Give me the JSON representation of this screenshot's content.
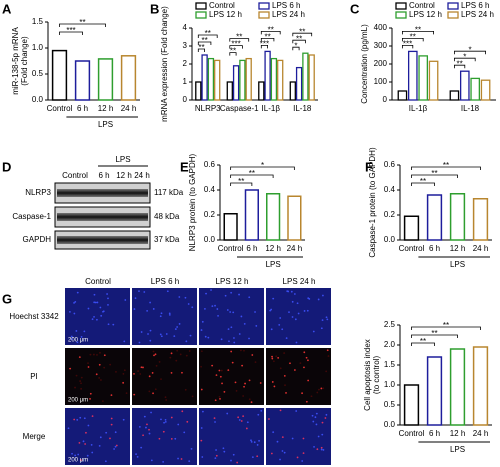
{
  "chart_data": [
    {
      "label": "A",
      "type": "bar",
      "categories": [
        "Control",
        "6 h",
        "12 h",
        "24 h"
      ],
      "values": [
        0.95,
        0.75,
        0.79,
        0.85
      ],
      "colors": [
        "#000000",
        "#1d1d9c",
        "#2e9e2e",
        "#b8862e"
      ],
      "ylabel": [
        "miR-138-5p mRNA",
        "(Fold change)"
      ],
      "ylim": [
        0,
        1.5
      ],
      "yticks": [
        {
          "value": 0,
          "label": "0.0"
        },
        0.5,
        {
          "value": 1,
          "label": "1.0"
        },
        1.5
      ],
      "group_label": "LPS",
      "annotations": [
        "***",
        "**"
      ]
    },
    {
      "label": "B",
      "type": "grouped_bar",
      "categories": [
        "NLRP3",
        "Caspase-1",
        "IL-1β",
        "IL-18"
      ],
      "series": [
        {
          "name": "Control",
          "color": "#000000",
          "values": [
            1.0,
            1.0,
            1.0,
            1.0
          ]
        },
        {
          "name": "LPS 6 h",
          "color": "#1d1d9c",
          "values": [
            2.5,
            1.9,
            2.7,
            1.8
          ]
        },
        {
          "name": "LPS 12 h",
          "color": "#2e9e2e",
          "values": [
            2.3,
            2.2,
            2.3,
            2.6
          ]
        },
        {
          "name": "LPS 24 h",
          "color": "#b8862e",
          "values": [
            2.2,
            2.3,
            2.2,
            2.5
          ]
        }
      ],
      "ylabel": [
        "mRNA expression (Fold change)"
      ],
      "ylim": [
        0,
        4
      ],
      "yticks": [
        0,
        1,
        2,
        3,
        4
      ],
      "legend": "top",
      "annotations": [
        [
          "**",
          "**",
          "**"
        ],
        [
          "**",
          "***",
          "**"
        ],
        [
          "***",
          "**",
          "**"
        ],
        [
          "*",
          "**",
          "**"
        ]
      ]
    },
    {
      "label": "C",
      "type": "grouped_bar",
      "categories": [
        "IL-1β",
        "IL-18"
      ],
      "series": [
        {
          "name": "Control",
          "color": "#000000",
          "values": [
            50,
            50
          ]
        },
        {
          "name": "LPS 6 h",
          "color": "#1d1d9c",
          "values": [
            270,
            160
          ]
        },
        {
          "name": "LPS 12 h",
          "color": "#2e9e2e",
          "values": [
            245,
            120
          ]
        },
        {
          "name": "LPS 24 h",
          "color": "#b8862e",
          "values": [
            215,
            110
          ]
        }
      ],
      "ylabel": [
        "Concentration (pg/mL)"
      ],
      "ylim": [
        0,
        400
      ],
      "yticks": [
        0,
        100,
        200,
        300,
        400
      ],
      "legend": "top",
      "annotations": [
        [
          "***",
          "**",
          "**"
        ],
        [
          "**",
          "*",
          "*"
        ]
      ]
    },
    {
      "label": "E",
      "type": "bar",
      "categories": [
        "Control",
        "6 h",
        "12 h",
        "24 h"
      ],
      "values": [
        0.21,
        0.4,
        0.37,
        0.35
      ],
      "colors": [
        "#000000",
        "#1d1d9c",
        "#2e9e2e",
        "#b8862e"
      ],
      "ylabel": [
        "NLRP3 protein (to GAPDH)"
      ],
      "ylim": [
        0,
        0.6
      ],
      "yticks": [
        {
          "value": 0,
          "label": "0.0"
        },
        0.2,
        0.4,
        0.6
      ],
      "group_label": "LPS",
      "annotations": [
        "**",
        "**",
        "*"
      ]
    },
    {
      "label": "F",
      "type": "bar",
      "categories": [
        "Control",
        "6 h",
        "12 h",
        "24 h"
      ],
      "values": [
        0.19,
        0.36,
        0.37,
        0.33
      ],
      "colors": [
        "#000000",
        "#1d1d9c",
        "#2e9e2e",
        "#b8862e"
      ],
      "ylabel": [
        "Caspase-1 protein (to GAPDH)"
      ],
      "ylim": [
        0,
        0.6
      ],
      "yticks": [
        {
          "value": 0,
          "label": "0.0"
        },
        0.2,
        0.4,
        0.6
      ],
      "group_label": "LPS",
      "annotations": [
        "**",
        "**",
        "**"
      ]
    },
    {
      "label": "G",
      "type": "bar",
      "categories": [
        "Control",
        "6 h",
        "12 h",
        "24 h"
      ],
      "values": [
        1.0,
        1.7,
        1.9,
        1.95
      ],
      "colors": [
        "#000000",
        "#1d1d9c",
        "#2e9e2e",
        "#b8862e"
      ],
      "ylabel": [
        "Cell apoptosis index",
        "(to control)"
      ],
      "ylim": [
        0,
        2.5
      ],
      "yticks": [
        {
          "value": 0,
          "label": "0.0"
        },
        0.5,
        {
          "value": 1,
          "label": "1.0"
        },
        1.5,
        {
          "value": 2,
          "label": "2.0"
        },
        2.5
      ],
      "group_label": "LPS",
      "annotations": [
        "**",
        "**",
        "**"
      ]
    }
  ],
  "blot": {
    "label": "D",
    "group_label": "LPS",
    "columns": [
      "Control",
      "6 h",
      "12 h",
      "24 h"
    ],
    "rows": [
      {
        "name": "NLRP3",
        "size": "117 kDa"
      },
      {
        "name": "Caspase-1",
        "size": "48 kDa"
      },
      {
        "name": "GAPDH",
        "size": "37 kDa"
      }
    ]
  },
  "images": {
    "columns": [
      "Control",
      "LPS 6 h",
      "LPS 12 h",
      "LPS 24 h"
    ],
    "rows": [
      "Hoechst 3342",
      "PI",
      "Merge"
    ],
    "scale": "200 μm"
  }
}
